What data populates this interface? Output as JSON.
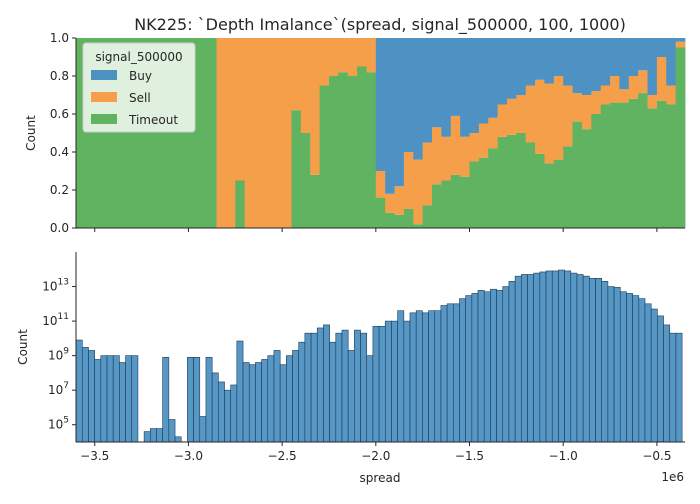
{
  "chart_data": [
    {
      "type": "bar",
      "subtype": "stacked-proportion-histogram",
      "title": "NK225: `Depth Imalance`(spread, signal_500000, 100, 1000)",
      "xlabel": "",
      "ylabel": "Count",
      "xlim": [
        -3600000,
        -350000
      ],
      "ylim": [
        0,
        1
      ],
      "yticks": [
        "0.0",
        "0.2",
        "0.4",
        "0.6",
        "0.8",
        "1.0"
      ],
      "legend_title": "signal_500000",
      "legend_position": "upper-left",
      "series_colors": {
        "Buy": "#4e91c3",
        "Sell": "#f69f4b",
        "Timeout": "#60b360"
      },
      "x": [
        -3575000,
        -3525000,
        -3475000,
        -3425000,
        -3375000,
        -3325000,
        -3275000,
        -3225000,
        -3175000,
        -3125000,
        -3075000,
        -3025000,
        -2975000,
        -2925000,
        -2875000,
        -2825000,
        -2775000,
        -2725000,
        -2675000,
        -2625000,
        -2575000,
        -2525000,
        -2475000,
        -2425000,
        -2375000,
        -2325000,
        -2275000,
        -2225000,
        -2175000,
        -2125000,
        -2075000,
        -2025000,
        -1975000,
        -1925000,
        -1875000,
        -1825000,
        -1775000,
        -1725000,
        -1675000,
        -1625000,
        -1575000,
        -1525000,
        -1475000,
        -1425000,
        -1375000,
        -1325000,
        -1275000,
        -1225000,
        -1175000,
        -1125000,
        -1075000,
        -1025000,
        -975000,
        -925000,
        -875000,
        -825000,
        -775000,
        -725000,
        -675000,
        -625000,
        -575000,
        -525000,
        -475000,
        -425000,
        -375000
      ],
      "series": [
        {
          "name": "Buy",
          "values": [
            0,
            0,
            0,
            0,
            0,
            0,
            0,
            0,
            0,
            0,
            0,
            0,
            0,
            0,
            0,
            0,
            0,
            0,
            0,
            0,
            0,
            0,
            0,
            0,
            0,
            0,
            0,
            0,
            0,
            0,
            0,
            0,
            0.7,
            0.82,
            0.78,
            0.6,
            0.64,
            0.55,
            0.47,
            0.52,
            0.41,
            0.52,
            0.5,
            0.45,
            0.42,
            0.35,
            0.32,
            0.3,
            0.25,
            0.22,
            0.24,
            0.2,
            0.25,
            0.29,
            0.3,
            0.28,
            0.25,
            0.2,
            0.27,
            0.2,
            0.17,
            0.3,
            0.1,
            0.25,
            0.02
          ]
        },
        {
          "name": "Sell",
          "values": [
            0,
            0,
            0,
            0,
            0,
            0,
            0,
            0,
            0,
            0,
            0,
            0,
            0,
            0,
            0,
            1,
            1,
            0.75,
            1,
            1,
            1,
            1,
            1,
            0.38,
            0.5,
            0.72,
            0.25,
            0.2,
            0.18,
            0.2,
            0.15,
            0.18,
            0.14,
            0.1,
            0.15,
            0.3,
            0.34,
            0.33,
            0.3,
            0.23,
            0.31,
            0.21,
            0.15,
            0.18,
            0.16,
            0.17,
            0.19,
            0.2,
            0.3,
            0.39,
            0.42,
            0.44,
            0.32,
            0.15,
            0.18,
            0.12,
            0.1,
            0.14,
            0.07,
            0.12,
            0.12,
            0.07,
            0.23,
            0.1,
            0.03
          ]
        },
        {
          "name": "Timeout",
          "values": [
            1,
            1,
            1,
            1,
            1,
            1,
            1,
            1,
            1,
            1,
            1,
            1,
            1,
            1,
            1,
            0,
            0,
            0.25,
            0,
            0,
            0,
            0,
            0,
            0.62,
            0.5,
            0.28,
            0.75,
            0.8,
            0.82,
            0.8,
            0.85,
            0.82,
            0.16,
            0.08,
            0.07,
            0.1,
            0.02,
            0.12,
            0.23,
            0.25,
            0.28,
            0.27,
            0.35,
            0.37,
            0.42,
            0.48,
            0.49,
            0.5,
            0.45,
            0.39,
            0.34,
            0.36,
            0.43,
            0.56,
            0.52,
            0.6,
            0.65,
            0.66,
            0.66,
            0.68,
            0.71,
            0.63,
            0.67,
            0.65,
            0.95
          ]
        }
      ]
    },
    {
      "type": "bar",
      "subtype": "histogram",
      "xlabel": "spread",
      "ylabel": "Count",
      "x_offset_label": "1e6",
      "xlim": [
        -3600000,
        -350000
      ],
      "yscale": "log",
      "ylim": [
        10000,
        1000000000000000
      ],
      "xticks": [
        "−3.5",
        "−3.0",
        "−2.5",
        "−2.0",
        "−1.5",
        "−1.0",
        "−0.5"
      ],
      "xtick_values": [
        -3500000,
        -3000000,
        -2500000,
        -2000000,
        -1500000,
        -1000000,
        -500000
      ],
      "yticks": [
        {
          "mantissa": "10",
          "exp": "5",
          "value": 100000
        },
        {
          "mantissa": "10",
          "exp": "7",
          "value": 10000000
        },
        {
          "mantissa": "10",
          "exp": "9",
          "value": 1000000000
        },
        {
          "mantissa": "10",
          "exp": "11",
          "value": 100000000000
        },
        {
          "mantissa": "10",
          "exp": "13",
          "value": 10000000000000
        }
      ],
      "bar_color": "#4e91c3",
      "x": [
        -3583000,
        -3550000,
        -3517000,
        -3484000,
        -3451000,
        -3418000,
        -3385000,
        -3352000,
        -3319000,
        -3286000,
        -3253000,
        -3220000,
        -3187000,
        -3154000,
        -3121000,
        -3088000,
        -3055000,
        -3022000,
        -2989000,
        -2956000,
        -2923000,
        -2890000,
        -2857000,
        -2824000,
        -2791000,
        -2758000,
        -2725000,
        -2692000,
        -2659000,
        -2626000,
        -2593000,
        -2560000,
        -2527000,
        -2494000,
        -2461000,
        -2428000,
        -2395000,
        -2362000,
        -2329000,
        -2296000,
        -2263000,
        -2230000,
        -2197000,
        -2164000,
        -2131000,
        -2098000,
        -2065000,
        -2032000,
        -1999000,
        -1966000,
        -1933000,
        -1900000,
        -1867000,
        -1834000,
        -1801000,
        -1768000,
        -1735000,
        -1702000,
        -1669000,
        -1636000,
        -1603000,
        -1570000,
        -1537000,
        -1504000,
        -1471000,
        -1438000,
        -1405000,
        -1372000,
        -1339000,
        -1306000,
        -1273000,
        -1240000,
        -1207000,
        -1174000,
        -1141000,
        -1108000,
        -1075000,
        -1042000,
        -1009000,
        -976000,
        -943000,
        -910000,
        -877000,
        -844000,
        -811000,
        -778000,
        -745000,
        -712000,
        -679000,
        -646000,
        -613000,
        -580000,
        -547000,
        -514000,
        -481000,
        -448000,
        -415000,
        -382000
      ],
      "values": [
        8000000000,
        3000000000,
        2000000000,
        600000000,
        1000000000,
        1000000000,
        1000000000,
        400000000,
        1000000000,
        1000000000,
        0,
        40000,
        60000,
        60000,
        800000000,
        200000,
        20000,
        0,
        800000000,
        800000000,
        300000,
        800000000,
        100000000,
        30000000,
        10000000,
        20000000,
        7000000000,
        400000000,
        300000000,
        400000000,
        600000000,
        1000000000,
        2000000000,
        300000000,
        1000000000,
        2000000000,
        6000000000,
        20000000000,
        20000000000,
        40000000000,
        60000000000,
        6000000000,
        20000000000,
        30000000000,
        2000000000,
        30000000000,
        20000000000,
        1000000000,
        50000000000,
        50000000000,
        100000000000,
        100000000000,
        400000000000,
        100000000000,
        300000000000,
        400000000000,
        300000000000,
        400000000000,
        400000000000,
        800000000000,
        1000000000000,
        1000000000000,
        2000000000000,
        3000000000000,
        4000000000000,
        6000000000000,
        5000000000000,
        7000000000000,
        6000000000000,
        10000000000000,
        20000000000000,
        40000000000000,
        50000000000000,
        50000000000000,
        60000000000000,
        70000000000000,
        80000000000000,
        80000000000000,
        90000000000000,
        80000000000000,
        60000000000000,
        50000000000000,
        40000000000000,
        30000000000000,
        30000000000000,
        20000000000000,
        10000000000000,
        9000000000000,
        5000000000000,
        4000000000000,
        3000000000000,
        2000000000000,
        1000000000000,
        500000000000,
        200000000000,
        60000000000,
        20000000000,
        20000000000
      ]
    }
  ]
}
